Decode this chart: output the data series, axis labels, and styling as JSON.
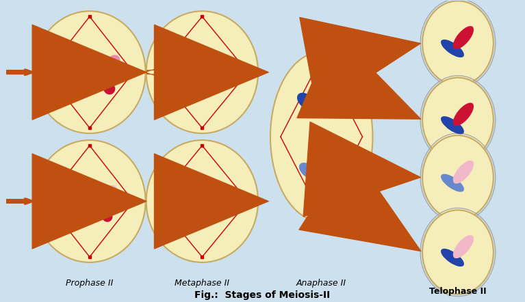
{
  "title": "Fig.:  Stages of Meiosis-II",
  "background_color": "#cce0ee",
  "cell_fill": "#f5eebb",
  "cell_edge": "#c8aa60",
  "arrow_color": "#c05010",
  "labels": [
    "Prophase II",
    "Metaphase II",
    "Anaphase II",
    "Telophase II"
  ],
  "chr_red_dark": "#cc1133",
  "chr_red_light": "#ee88aa",
  "chr_pink_light": "#f0b8c8",
  "chr_blue_dark": "#2244aa",
  "chr_blue_light": "#6688cc",
  "spindle_color": "#cc0000",
  "fig_width": 7.67,
  "fig_height": 4.42,
  "dpi": 100
}
